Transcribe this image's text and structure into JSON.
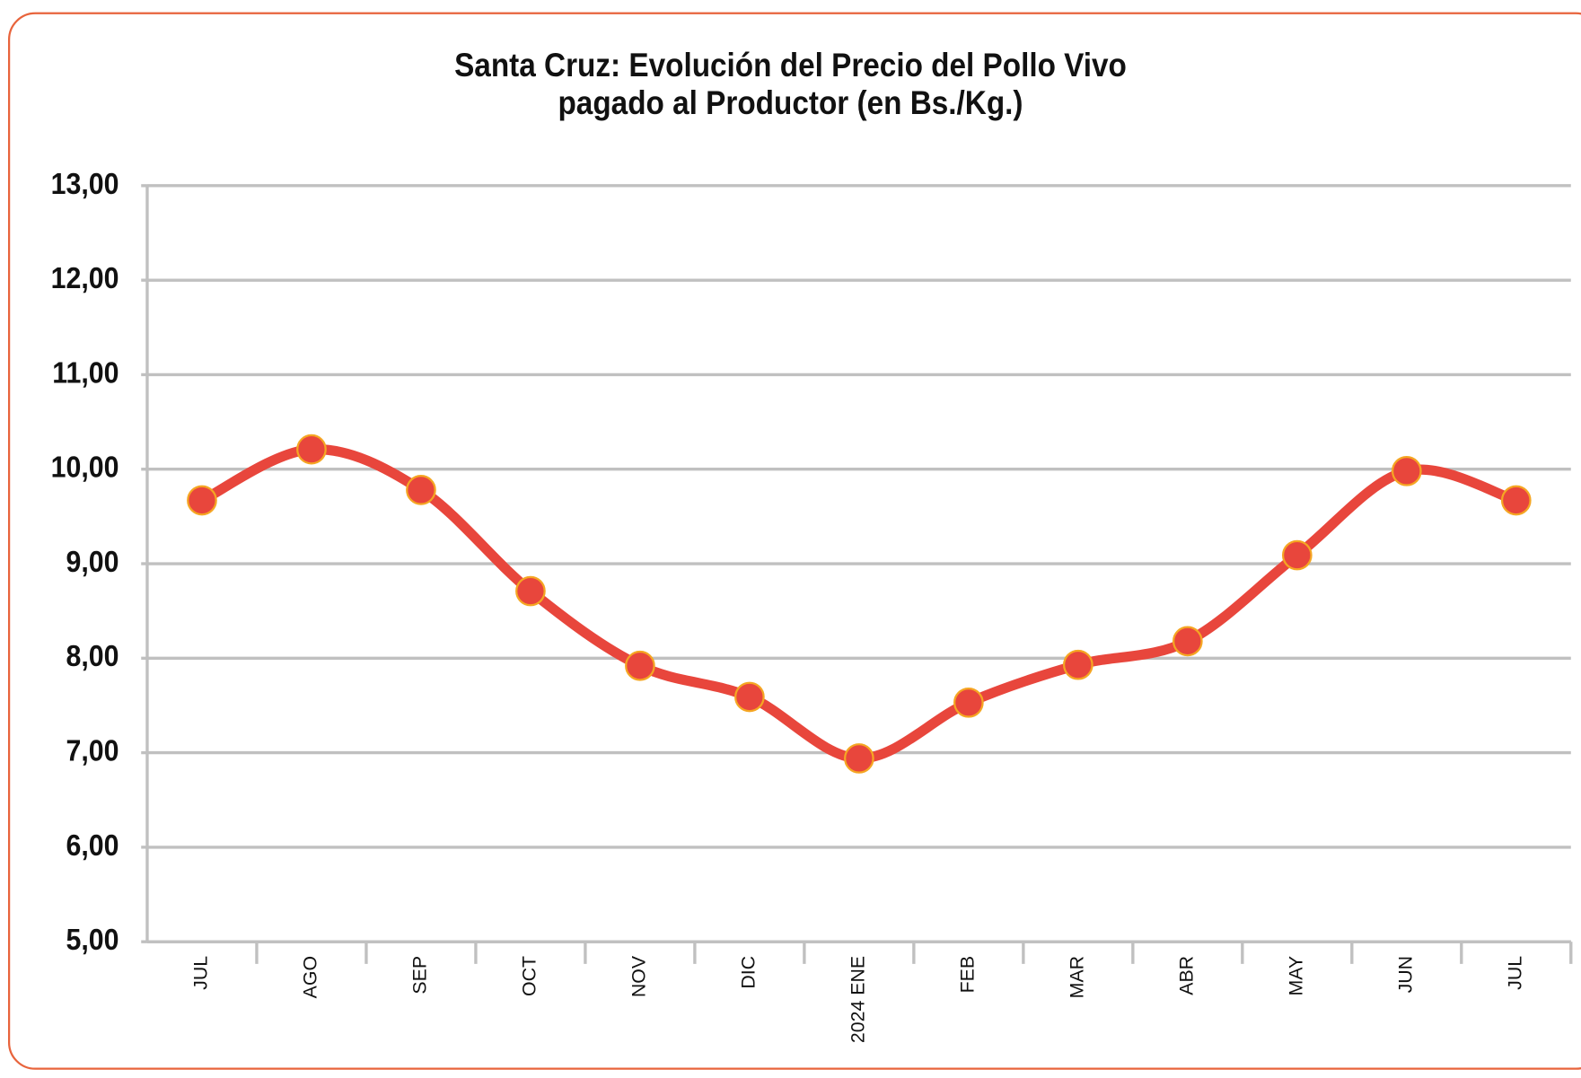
{
  "chart_data": {
    "type": "line",
    "title": "Santa Cruz: Evolución del Precio del Pollo Vivo\npagado al Productor (en Bs./Kg.)",
    "categories": [
      "JUL",
      "AGO",
      "SEP",
      "OCT",
      "NOV",
      "DIC",
      "2024 ENE",
      "FEB",
      "MAR",
      "ABR",
      "MAY",
      "JUN",
      "JUL"
    ],
    "series": [
      {
        "color": "#e8463c",
        "values": [
          9.67,
          10.21,
          9.78,
          8.71,
          7.92,
          7.59,
          6.94,
          7.53,
          7.93,
          8.18,
          9.09,
          9.98,
          9.67
        ]
      }
    ],
    "ylim": [
      5,
      13
    ],
    "yticks": [
      {
        "value": 5,
        "label": "5,00"
      },
      {
        "value": 6,
        "label": "6,00"
      },
      {
        "value": 7,
        "label": "7,00"
      },
      {
        "value": 8,
        "label": "8,00"
      },
      {
        "value": 9,
        "label": "9,00"
      },
      {
        "value": 10,
        "label": "10,00"
      },
      {
        "value": 11,
        "label": "11,00"
      },
      {
        "value": 12,
        "label": "12,00"
      },
      {
        "value": 13,
        "label": "13,00"
      }
    ],
    "grid": true,
    "smooth": true
  }
}
